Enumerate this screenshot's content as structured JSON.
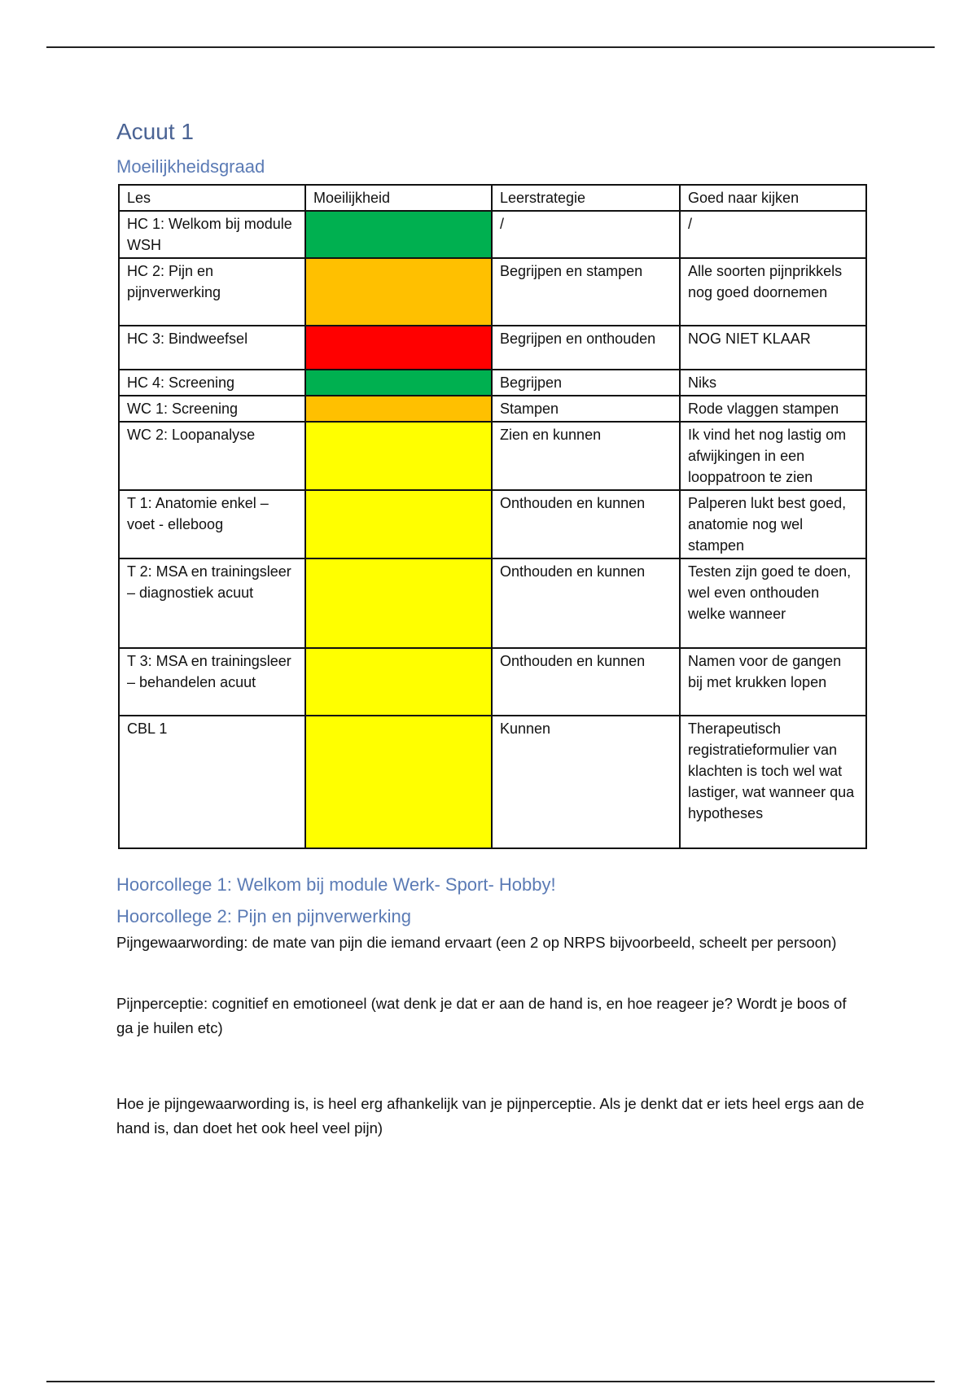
{
  "title": "Acuut 1",
  "subtitle": "Moeilijkheidsgraad",
  "colors": {
    "green": "#00b050",
    "orange": "#ffc000",
    "red": "#ff0000",
    "yellow": "#ffff00",
    "heading": "#4a6394"
  },
  "table": {
    "headers": [
      "Les",
      "Moeilijkheid",
      "Leerstrategie",
      "Goed naar kijken"
    ],
    "rows": [
      {
        "les": "HC 1: Welkom bij module WSH",
        "difficulty": "green",
        "strategy": "/",
        "notes": "/"
      },
      {
        "les": "HC 2: Pijn en pijnverwerking",
        "difficulty": "orange",
        "strategy": "Begrijpen en stampen",
        "notes": "Alle soorten pijnprikkels nog goed doornemen"
      },
      {
        "les": "HC 3: Bindweefsel",
        "difficulty": "red",
        "strategy": "Begrijpen en onthouden",
        "notes": "NOG NIET KLAAR"
      },
      {
        "les": "HC 4: Screening",
        "difficulty": "green",
        "strategy": "Begrijpen",
        "notes": "Niks"
      },
      {
        "les": "WC 1: Screening",
        "difficulty": "orange",
        "strategy": "Stampen",
        "notes": "Rode vlaggen stampen"
      },
      {
        "les": "WC 2: Loopanalyse",
        "difficulty": "yellow",
        "strategy": "Zien en kunnen",
        "notes": "Ik vind het nog lastig om afwijkingen in een looppatroon te zien"
      },
      {
        "les": "T 1: Anatomie enkel – voet - elleboog",
        "difficulty": "yellow",
        "strategy": "Onthouden en kunnen",
        "notes": "Palperen lukt best goed, anatomie nog wel stampen"
      },
      {
        "les": "T 2: MSA en trainingsleer – diagnostiek acuut",
        "difficulty": "yellow",
        "strategy": "Onthouden en kunnen",
        "notes": "Testen zijn goed te doen, wel even onthouden welke wanneer"
      },
      {
        "les": "T 3: MSA en trainingsleer – behandelen acuut",
        "difficulty": "yellow",
        "strategy": "Onthouden en kunnen",
        "notes": "Namen voor de gangen bij met krukken lopen"
      },
      {
        "les": "CBL 1",
        "difficulty": "yellow",
        "strategy": "Kunnen",
        "notes": "Therapeutisch registratieformulier van klachten is toch wel wat lastiger, wat wanneer qua hypotheses"
      }
    ]
  },
  "sections": [
    {
      "heading": "Hoorcollege 1: Welkom bij module Werk- Sport- Hobby!"
    },
    {
      "heading": "Hoorcollege 2: Pijn en pijnverwerking",
      "paragraphs": [
        "Pijngewaarwording: de mate van pijn die iemand ervaart (een 2 op NRPS bijvoorbeeld, scheelt per persoon)",
        "Pijnperceptie: cognitief en emotioneel (wat denk je dat er aan de hand is, en hoe reageer je? Wordt je boos of ga je huilen etc)",
        "Hoe je pijngewaarwording is, is heel erg afhankelijk van je pijnperceptie. Als je denkt dat er iets heel ergs aan de hand is, dan doet het ook heel veel pijn)"
      ]
    }
  ]
}
